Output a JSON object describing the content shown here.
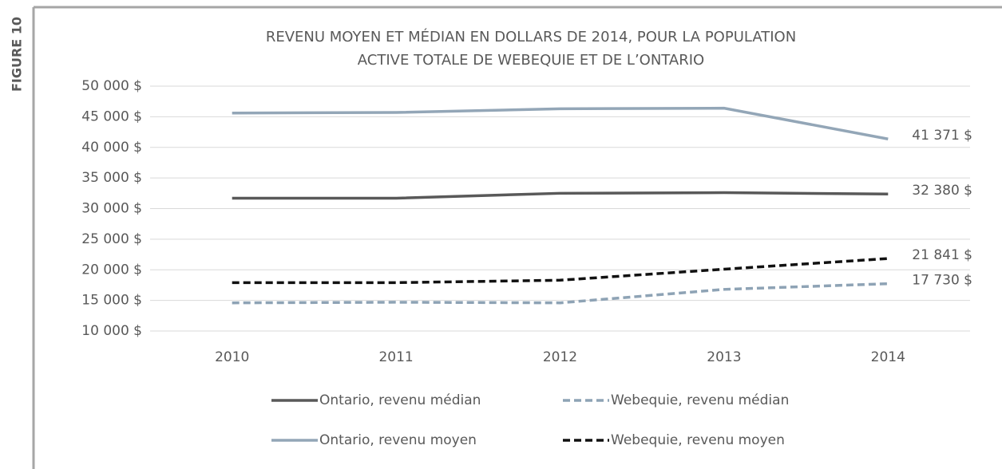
{
  "figure_label": "FIGURE 10",
  "chart_data": {
    "type": "line",
    "title": [
      "REVENU MOYEN ET MÉDIAN EN DOLLARS DE 2014, POUR LA POPULATION",
      "ACTIVE TOTALE DE WEBEQUIE ET DE L’ONTARIO"
    ],
    "categories": [
      "2010",
      "2011",
      "2012",
      "2013",
      "2014"
    ],
    "series": [
      {
        "name": "Ontario, revenu médian",
        "color": "#595959",
        "dashed": false,
        "values": [
          31700,
          31700,
          32500,
          32600,
          32380
        ],
        "value_labels": [
          null,
          null,
          null,
          null,
          "32 380 $"
        ]
      },
      {
        "name": "Webequie, revenu médian",
        "color": "#8ea3b5",
        "dashed": true,
        "values": [
          14600,
          14700,
          14600,
          16800,
          17730
        ],
        "value_labels": [
          null,
          null,
          null,
          null,
          "17 730 $"
        ]
      },
      {
        "name": "Ontario, revenu moyen",
        "color": "#93a6b7",
        "dashed": false,
        "values": [
          45600,
          45700,
          46300,
          46400,
          41371
        ],
        "value_labels": [
          null,
          null,
          null,
          null,
          "41 371 $"
        ]
      },
      {
        "name": "Webequie, revenu moyen",
        "color": "#111111",
        "dashed": true,
        "values": [
          17900,
          17900,
          18300,
          20100,
          21841
        ],
        "value_labels": [
          null,
          null,
          null,
          null,
          "21 841 $"
        ]
      }
    ],
    "ylim": [
      10000,
      50000
    ],
    "yticks": [
      {
        "value": 10000,
        "label": "10 000 $"
      },
      {
        "value": 15000,
        "label": "15 000 $"
      },
      {
        "value": 20000,
        "label": "20 000 $"
      },
      {
        "value": 25000,
        "label": "25 000 $"
      },
      {
        "value": 30000,
        "label": "30 000 $"
      },
      {
        "value": 35000,
        "label": "35 000 $"
      },
      {
        "value": 40000,
        "label": "40 000 $"
      },
      {
        "value": 45000,
        "label": "45 000 $"
      },
      {
        "value": 50000,
        "label": "50 000 $"
      }
    ],
    "grid": true
  }
}
